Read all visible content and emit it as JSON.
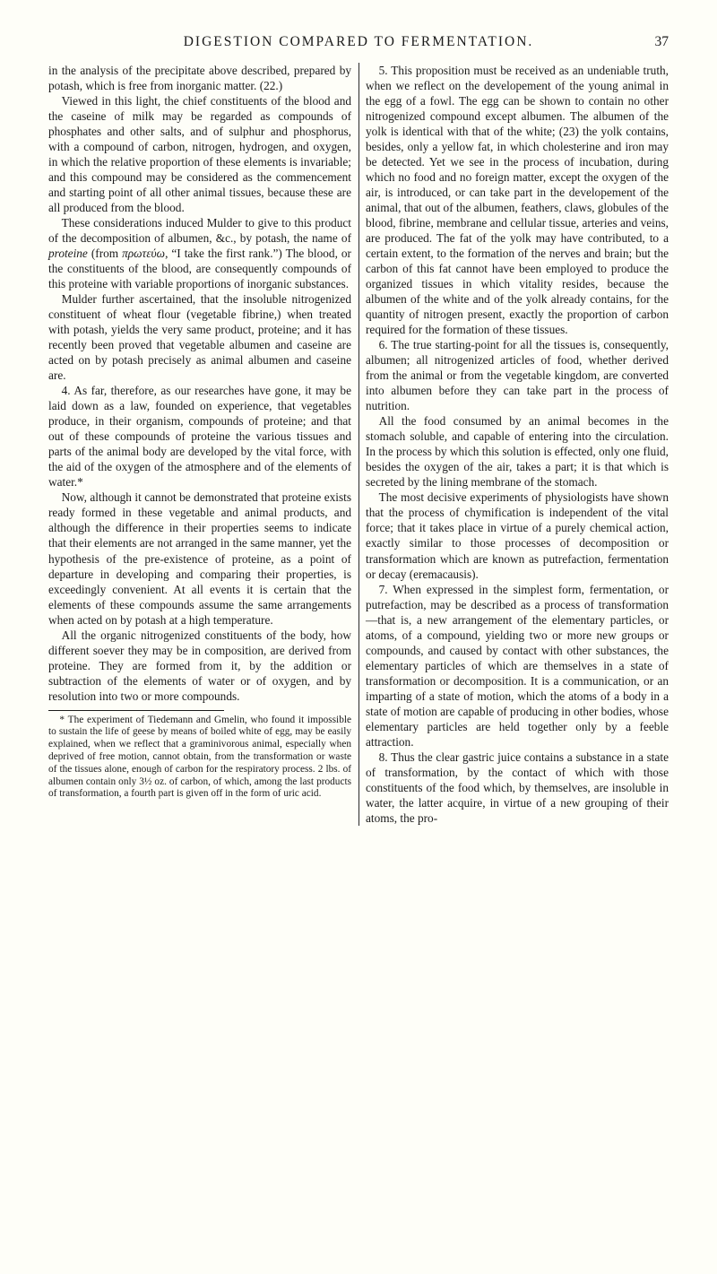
{
  "header": {
    "running_head": "DIGESTION COMPARED TO FERMENTATION.",
    "page_number": "37"
  },
  "body": {
    "paragraphs": [
      "in the analysis of the precipitate above described, prepared by potash, which is free from inorganic matter. (22.)",
      "Viewed in this light, the chief constituents of the blood and the caseine of milk may be regarded as compounds of phosphates and other salts, and of sulphur and phosphorus, with a compound of carbon, nitrogen, hydrogen, and oxygen, in which the relative proportion of these elements is invariable; and this compound may be considered as the commencement and starting point of all other animal tissues, because these are all produced from the blood.",
      "These considerations induced Mulder to give to this product of the decomposition of albumen, &c., by potash, the name of <span class=\"ital\">proteine</span> (from <span class=\"ital\">πρωτεύω</span>, “I take the first rank.”) The blood, or the constituents of the blood, are consequently compounds of this proteine with variable proportions of inorganic substances.",
      "Mulder further ascertained, that the insoluble nitrogenized constituent of wheat flour (vegetable fibrine,) when treated with potash, yields the very same product, proteine; and it has recently been proved that vegetable albumen and caseine are acted on by potash precisely as animal albumen and caseine are.",
      "4. As far, therefore, as our researches have gone, it may be laid down as a law, founded on experience, that vegetables produce, in their organism, compounds of proteine; and that out of these compounds of proteine the various tissues and parts of the animal body are developed by the vital force, with the aid of the oxygen of the atmosphere and of the elements of water.*",
      "Now, although it cannot be demonstrated that proteine exists ready formed in these vegetable and animal products, and although the difference in their properties seems to indicate that their elements are not arranged in the same manner, yet the hypothesis of the pre-existence of proteine, as a point of departure in developing and comparing their properties, is exceedingly convenient. At all events it is certain that the elements of these compounds assume the same arrangements when acted on by potash at a high temperature.",
      "All the organic nitrogenized constituents of the body, how different soever they may be in composition, are derived from proteine. They are formed from it, by the addition or subtraction of the elements of water or of oxygen, and by resolution into two or more compounds.",
      "5. This proposition must be received as an undeniable truth, when we reflect on the developement of the young animal in the egg of a fowl. The egg can be shown to contain no other nitrogenized compound except albumen. The albumen of the yolk is identical with that of the white; (23) the yolk contains, besides, only a yellow fat, in which cholesterine and iron may be detected. Yet we see in the process of incubation, during which no food and no foreign matter, except the oxygen of the air, is introduced, or can take part in the developement of the animal, that out of the albumen, feathers, claws, globules of the blood, fibrine, membrane and cellular tissue, arteries and veins, are produced. The fat of the yolk may have contributed, to a certain extent, to the formation of the nerves and brain; but the carbon of this fat cannot have been employed to produce the organized tissues in which vitality resides, because the albumen of the white and of the yolk already contains, for the quantity of nitrogen present, exactly the proportion of carbon required for the formation of these tissues.",
      "6. The true starting-point for all the tissues is, consequently, albumen; all nitrogenized articles of food, whether derived from the animal or from the vegetable kingdom, are converted into albumen before they can take part in the process of nutrition.",
      "All the food consumed by an animal becomes in the stomach soluble, and capable of entering into the circulation. In the process by which this solution is effected, only one fluid, besides the oxygen of the air, takes a part; it is that which is secreted by the lining membrane of the stomach.",
      "The most decisive experiments of physiologists have shown that the process of chymification is independent of the vital force; that it takes place in virtue of a purely chemical action, exactly similar to those processes of decomposition or transformation which are known as putrefaction, fermentation or decay (eremacausis).",
      "7. When expressed in the simplest form, fermentation, or putrefaction, may be described as a process of transformation—that is, a new arrangement of the elementary particles, or atoms, of a compound, yielding two or more new groups or compounds, and caused by contact with other substances, the elementary particles of which are themselves in a state of transformation or decomposition. It is a communication, or an imparting of a state of motion, which the atoms of a body in a state of motion are capable of producing in other bodies, whose elementary particles are held together only by a feeble attraction.",
      "8. Thus the clear gastric juice contains a substance in a state of transformation, by the contact of which with those constituents of the food which, by themselves, are insoluble in water, the latter acquire, in virtue of a new grouping of their atoms, the pro-"
    ],
    "footnote": "* The experiment of Tiedemann and Gmelin, who found it impossible to sustain the life of geese by means of boiled white of egg, may be easily explained, when we reflect that a graminivorous animal, especially when deprived of free motion, cannot obtain, from the transformation or waste of the tissues alone, enough of carbon for the respiratory process. 2 lbs. of albumen contain only 3½ oz. of carbon, of which, among the last products of transformation, a fourth part is given off in the form of uric acid."
  }
}
